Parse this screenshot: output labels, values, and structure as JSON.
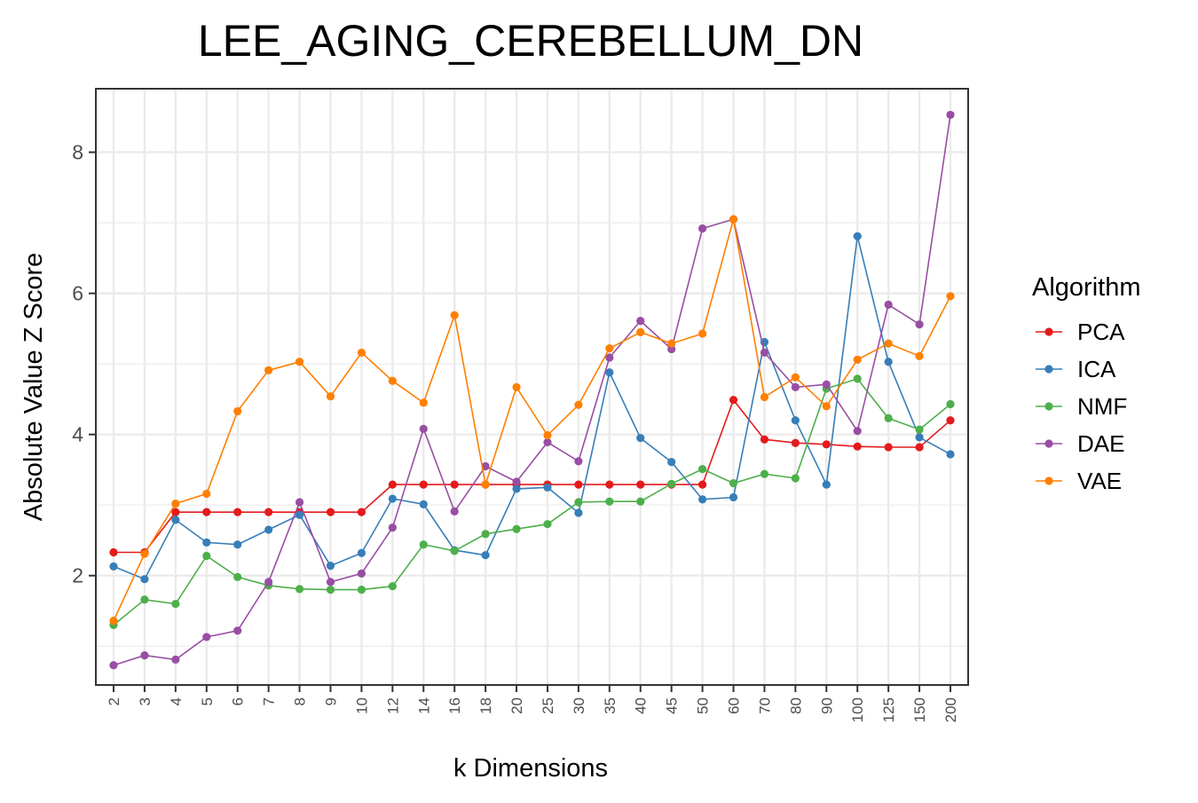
{
  "chart_data": {
    "type": "line",
    "title": "LEE_AGING_CEREBELLUM_DN",
    "xlabel": "k Dimensions",
    "ylabel": "Absolute Value Z Score",
    "x_is_categorical": true,
    "categories": [
      "2",
      "3",
      "4",
      "5",
      "6",
      "7",
      "8",
      "9",
      "10",
      "12",
      "14",
      "16",
      "18",
      "20",
      "25",
      "30",
      "35",
      "40",
      "45",
      "50",
      "60",
      "70",
      "80",
      "90",
      "100",
      "125",
      "150",
      "200"
    ],
    "ylim": [
      0.45,
      8.9
    ],
    "yticks": [
      2,
      4,
      6,
      8
    ],
    "grid": true,
    "legend": {
      "title": "Algorithm",
      "position": "right"
    },
    "series": [
      {
        "name": "PCA",
        "color": "#e41a1c",
        "values": [
          2.33,
          2.33,
          2.9,
          2.9,
          2.9,
          2.9,
          2.9,
          2.9,
          2.9,
          3.29,
          3.29,
          3.29,
          3.29,
          3.29,
          3.29,
          3.29,
          3.29,
          3.29,
          3.29,
          3.29,
          4.49,
          3.93,
          3.88,
          3.86,
          3.83,
          3.82,
          3.82,
          4.2
        ]
      },
      {
        "name": "ICA",
        "color": "#377eb8",
        "values": [
          2.13,
          1.95,
          2.79,
          2.47,
          2.44,
          2.65,
          2.86,
          2.14,
          2.32,
          3.09,
          3.01,
          2.36,
          2.29,
          3.23,
          3.25,
          2.89,
          4.88,
          3.95,
          3.61,
          3.08,
          3.11,
          5.31,
          4.2,
          3.29,
          6.81,
          5.03,
          3.96,
          3.72
        ]
      },
      {
        "name": "NMF",
        "color": "#4daf4a",
        "values": [
          1.3,
          1.66,
          1.6,
          2.28,
          1.98,
          1.86,
          1.81,
          1.8,
          1.8,
          1.85,
          2.44,
          2.35,
          2.59,
          2.66,
          2.73,
          3.04,
          3.05,
          3.05,
          3.3,
          3.51,
          3.31,
          3.44,
          3.38,
          4.65,
          4.79,
          4.23,
          4.07,
          4.43
        ]
      },
      {
        "name": "DAE",
        "color": "#984ea3",
        "values": [
          0.73,
          0.87,
          0.81,
          1.13,
          1.22,
          1.91,
          3.04,
          1.91,
          2.03,
          2.68,
          4.08,
          2.91,
          3.55,
          3.33,
          3.89,
          3.62,
          5.09,
          5.61,
          5.21,
          6.92,
          7.05,
          5.16,
          4.67,
          4.71,
          4.05,
          5.84,
          5.56,
          8.53
        ]
      },
      {
        "name": "VAE",
        "color": "#ff7f00",
        "values": [
          1.36,
          2.31,
          3.02,
          3.16,
          4.33,
          4.91,
          5.03,
          4.54,
          5.16,
          4.76,
          4.45,
          5.69,
          3.29,
          4.67,
          3.99,
          4.42,
          5.22,
          5.45,
          5.29,
          5.43,
          7.05,
          4.53,
          4.81,
          4.4,
          5.06,
          5.29,
          5.11,
          5.96
        ]
      }
    ]
  }
}
